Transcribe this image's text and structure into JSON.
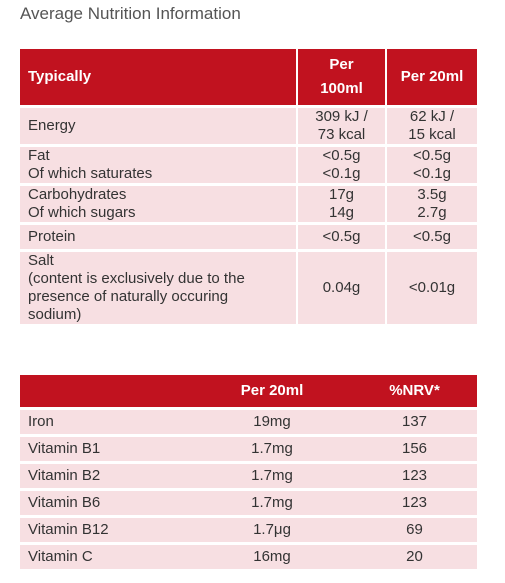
{
  "heading": "Average Nutrition Information",
  "table1": {
    "headers": {
      "typically": "Typically",
      "per100_line1": "Per",
      "per100_line2": "100ml",
      "per20": "Per 20ml"
    },
    "rows": {
      "energy": {
        "label": "Energy",
        "per100_l1": "309 kJ /",
        "per100_l2": "73 kcal",
        "per20_l1": "62 kJ /",
        "per20_l2": "15 kcal"
      },
      "fat": {
        "label_l1": "Fat",
        "label_l2": "Of which saturates",
        "per100_l1": "<0.5g",
        "per100_l2": "<0.1g",
        "per20_l1": "<0.5g",
        "per20_l2": "<0.1g"
      },
      "carbs": {
        "label_l1": "Carbohydrates",
        "label_l2": "Of which sugars",
        "per100_l1": "17g",
        "per100_l2": "14g",
        "per20_l1": "3.5g",
        "per20_l2": "2.7g"
      },
      "protein": {
        "label": "Protein",
        "per100": "<0.5g",
        "per20": "<0.5g"
      },
      "salt": {
        "label_l1": "Salt",
        "label_l2": "(content is exclusively due to the",
        "label_l3": "presence of naturally occuring",
        "label_l4": "sodium)",
        "per100": "0.04g",
        "per20": "<0.01g"
      }
    }
  },
  "table2": {
    "headers": {
      "blank": "",
      "per20": "Per 20ml",
      "nrv": "%NRV*"
    },
    "rows": [
      {
        "label": "Iron",
        "per20": "19mg",
        "nrv": "137"
      },
      {
        "label": "Vitamin B1",
        "per20": "1.7mg",
        "nrv": "156"
      },
      {
        "label": "Vitamin B2",
        "per20": "1.7mg",
        "nrv": "123"
      },
      {
        "label": "Vitamin B6",
        "per20": "1.7mg",
        "nrv": "123"
      },
      {
        "label": "Vitamin B12",
        "per20": "1.7μg",
        "nrv": "69"
      },
      {
        "label": "Vitamin C",
        "per20": "16mg",
        "nrv": "20"
      }
    ]
  },
  "colors": {
    "header_bg": "#c1121f",
    "row_bg": "#f7dfe2"
  }
}
